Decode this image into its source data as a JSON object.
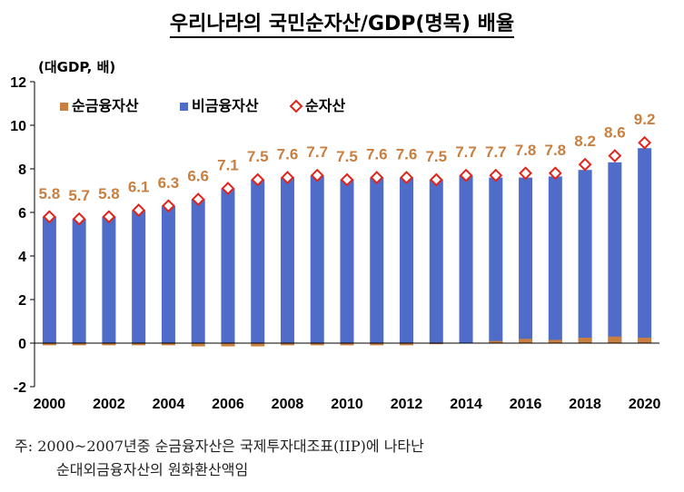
{
  "title": "우리나라의 국민순자산/GDP(명목) 배율",
  "notes": [
    "주: 2000~2007년중 순금융자산은 국제투자대조표(IIP)에 나타난",
    "순대외금융자산의 원화환산액임"
  ],
  "chart_data": {
    "type": "bar",
    "stacked": true,
    "ylabel": "(대GDP, 배)",
    "ylim": [
      -2,
      12
    ],
    "yticks": [
      -2,
      0,
      2,
      4,
      6,
      8,
      10,
      12
    ],
    "x": [
      2000,
      2001,
      2002,
      2003,
      2004,
      2005,
      2006,
      2007,
      2008,
      2009,
      2010,
      2011,
      2012,
      2013,
      2014,
      2015,
      2016,
      2017,
      2018,
      2019,
      2020
    ],
    "xtick_labels": [
      "2000",
      "2002",
      "2004",
      "2006",
      "2008",
      "2010",
      "2012",
      "2014",
      "2016",
      "2018",
      "2020"
    ],
    "legend_position": "top-left",
    "grid": false,
    "series": [
      {
        "name": "순금융자산",
        "color": "#C87F3F",
        "type": "bar",
        "values": [
          -0.1,
          -0.1,
          -0.1,
          -0.1,
          -0.1,
          -0.15,
          -0.15,
          -0.15,
          -0.1,
          -0.1,
          -0.1,
          -0.1,
          -0.1,
          -0.05,
          0.0,
          0.1,
          0.2,
          0.15,
          0.25,
          0.3,
          0.25
        ]
      },
      {
        "name": "비금융자산",
        "color": "#4F6DC8",
        "type": "bar",
        "values": [
          5.8,
          5.7,
          5.8,
          6.1,
          6.3,
          6.6,
          7.1,
          7.5,
          7.6,
          7.7,
          7.5,
          7.6,
          7.6,
          7.5,
          7.7,
          7.6,
          7.6,
          7.65,
          7.95,
          8.3,
          8.95
        ]
      },
      {
        "name": "순자산",
        "color": "#E2231A",
        "type": "marker",
        "values": [
          5.8,
          5.7,
          5.8,
          6.1,
          6.3,
          6.6,
          7.1,
          7.5,
          7.6,
          7.7,
          7.5,
          7.6,
          7.6,
          7.5,
          7.7,
          7.7,
          7.8,
          7.8,
          8.2,
          8.6,
          9.2
        ],
        "labels": [
          "5.8",
          "5.7",
          "5.8",
          "6.1",
          "6.3",
          "6.6",
          "7.1",
          "7.5",
          "7.6",
          "7.7",
          "7.5",
          "7.6",
          "7.6",
          "7.5",
          "7.7",
          "7.7",
          "7.8",
          "7.8",
          "8.2",
          "8.6",
          "9.2"
        ],
        "label_color": "#C87F3F"
      }
    ]
  }
}
